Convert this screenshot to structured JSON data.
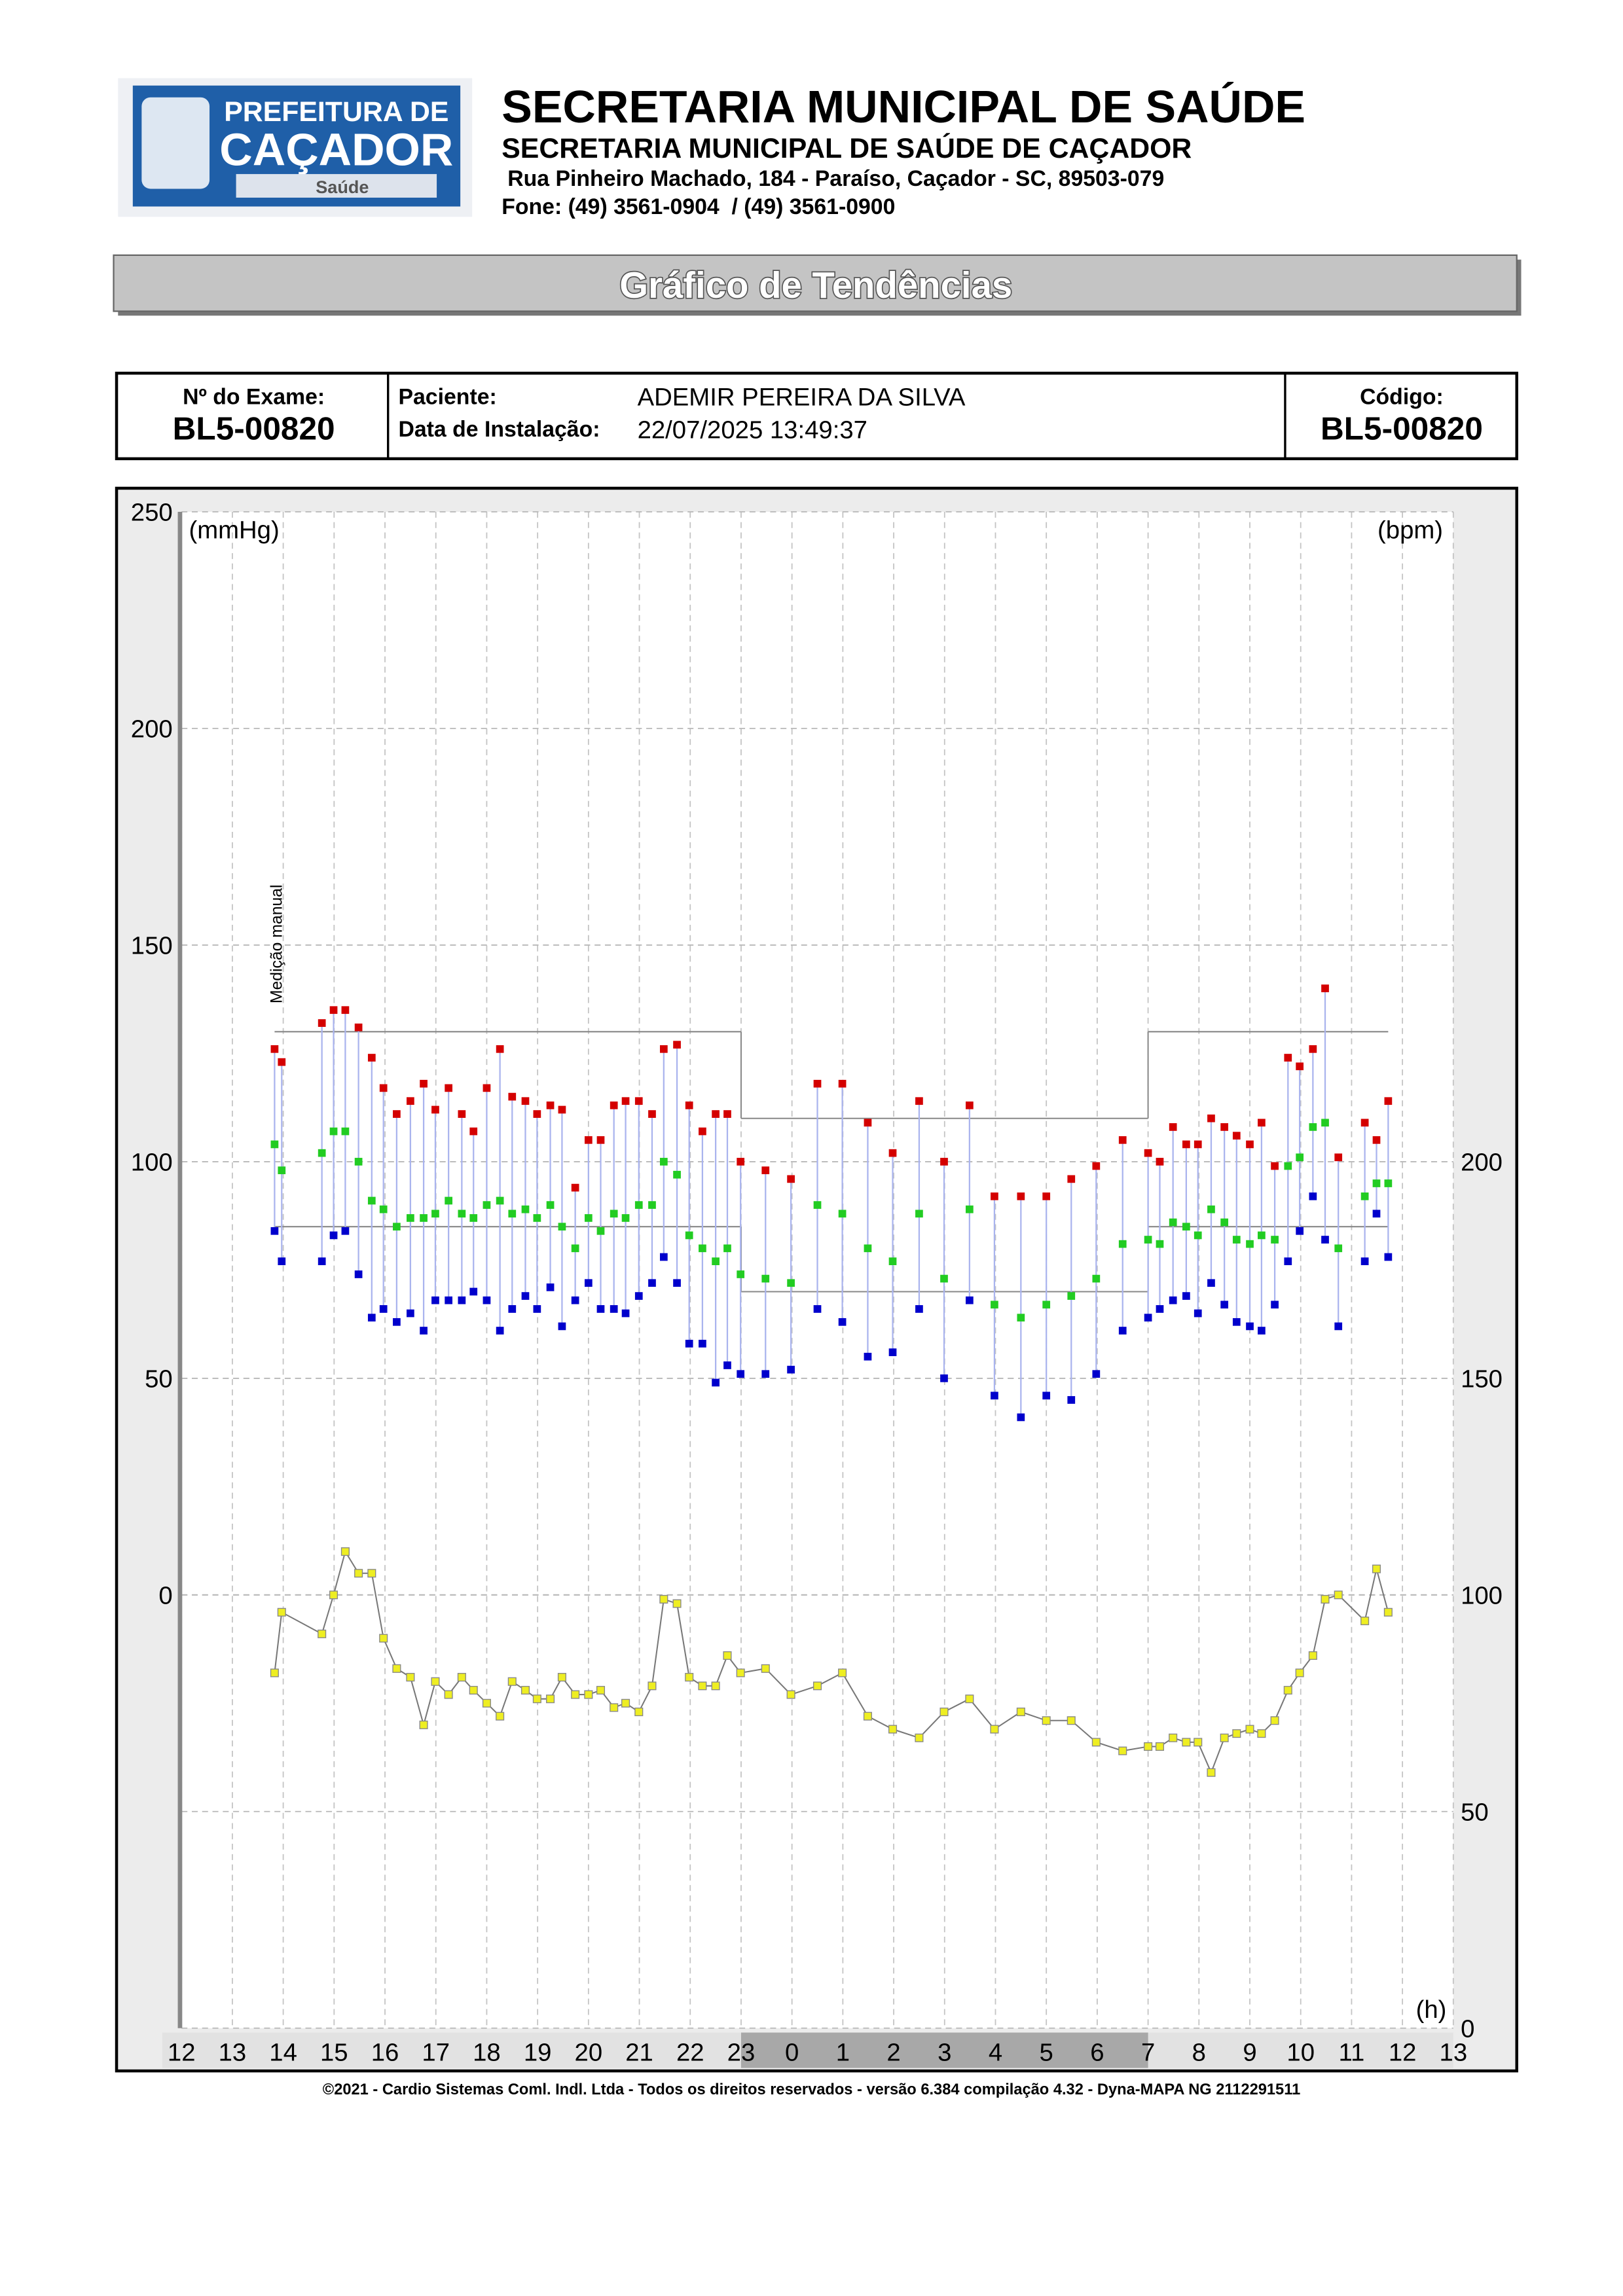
{
  "header": {
    "logo": {
      "line1": "PREFEITURA DE",
      "line2": "CAÇADOR",
      "line3": "Saúde"
    },
    "title": "SECRETARIA MUNICIPAL DE SAÚDE",
    "subtitle": "SECRETARIA MUNICIPAL DE SAÚDE DE CAÇADOR",
    "address": "Rua Pinheiro Machado, 184 - Paraíso, Caçador - SC, 89503-079",
    "phone": "Fone: (49) 3561-0904  / (49) 3561-0900"
  },
  "banner": "Gráfico de Tendências",
  "info": {
    "exam_label": "Nº do Exame:",
    "exam": "BL5-00820",
    "patient_label": "Paciente:",
    "patient": "ADEMIR PEREIRA DA SILVA",
    "date_label": "Data de Instalação:",
    "date": "22/07/2025 13:49:37",
    "code_label": "Código:",
    "code": "BL5-00820"
  },
  "chart_data": {
    "type": "scatter",
    "y_label": "(mmHg)",
    "y2_label": "(bpm)",
    "x_label": "(h)",
    "annotation": "Medição manual",
    "xlim": [
      12,
      37
    ],
    "xticks": [
      12,
      13,
      14,
      15,
      16,
      17,
      18,
      19,
      20,
      21,
      22,
      23,
      {
        "value": 24,
        "label": "0"
      },
      {
        "value": 25,
        "label": "1"
      },
      {
        "value": 26,
        "label": "2"
      },
      {
        "value": 27,
        "label": "3"
      },
      {
        "value": 28,
        "label": "4"
      },
      {
        "value": 29,
        "label": "5"
      },
      {
        "value": 30,
        "label": "6"
      },
      {
        "value": 31,
        "label": "7"
      },
      {
        "value": 32,
        "label": "8"
      },
      {
        "value": 33,
        "label": "9"
      },
      {
        "value": 34,
        "label": "10"
      },
      {
        "value": 35,
        "label": "11"
      },
      {
        "value": 36,
        "label": "12"
      },
      {
        "value": 37,
        "label": "13"
      }
    ],
    "ylim": [
      -100,
      250
    ],
    "yticks": [
      0,
      50,
      100,
      150,
      200,
      250
    ],
    "y2lim": [
      0,
      350
    ],
    "y2ticks": [
      0,
      50,
      100,
      150,
      200
    ],
    "grid": true,
    "night": [
      23,
      31
    ],
    "limits": [
      {
        "x0": 13.83,
        "x1": 23,
        "systolic": 130,
        "diastolic": 85
      },
      {
        "x0": 23,
        "x1": 31,
        "systolic": 110,
        "diastolic": 70
      },
      {
        "x0": 31,
        "x1": 35.72,
        "systolic": 130,
        "diastolic": 85
      }
    ],
    "x": [
      13.83,
      13.97,
      14.76,
      14.99,
      15.22,
      15.48,
      15.74,
      15.97,
      16.23,
      16.5,
      16.76,
      16.99,
      17.25,
      17.51,
      17.74,
      18,
      18.26,
      18.5,
      18.76,
      18.99,
      19.25,
      19.48,
      19.74,
      20,
      20.24,
      20.5,
      20.73,
      20.99,
      21.25,
      21.48,
      21.74,
      21.98,
      22.24,
      22.5,
      22.73,
      22.99,
      23.48,
      23.98,
      24.5,
      24.99,
      25.49,
      25.98,
      26.5,
      26.99,
      27.49,
      27.98,
      28.5,
      29,
      29.49,
      29.98,
      30.5,
      31,
      31.23,
      31.49,
      31.75,
      31.98,
      32.24,
      32.5,
      32.74,
      33,
      33.23,
      33.49,
      33.75,
      33.98,
      34.24,
      34.48,
      34.74,
      35.26,
      35.49,
      35.72
    ],
    "series": [
      {
        "color": "#d40000",
        "values": [
          126,
          123,
          132,
          135,
          135,
          131,
          124,
          117,
          111,
          114,
          118,
          112,
          117,
          111,
          107,
          117,
          126,
          115,
          114,
          111,
          113,
          112,
          94,
          105,
          105,
          113,
          114,
          114,
          111,
          126,
          127,
          113,
          107,
          111,
          111,
          100,
          98,
          96,
          118,
          118,
          109,
          102,
          114,
          100,
          113,
          92,
          92,
          92,
          96,
          99,
          105,
          102,
          100,
          108,
          104,
          104,
          110,
          108,
          106,
          104,
          109,
          99,
          124,
          122,
          126,
          140,
          101,
          109,
          105,
          114
        ]
      },
      {
        "color": "#22cc22",
        "values": [
          104,
          98,
          102,
          107,
          107,
          100,
          91,
          89,
          85,
          87,
          87,
          88,
          91,
          88,
          87,
          90,
          91,
          88,
          89,
          87,
          90,
          85,
          80,
          87,
          84,
          88,
          87,
          90,
          90,
          100,
          97,
          83,
          80,
          77,
          80,
          74,
          73,
          72,
          90,
          88,
          80,
          77,
          88,
          73,
          89,
          67,
          64,
          67,
          69,
          73,
          81,
          82,
          81,
          86,
          85,
          83,
          89,
          86,
          82,
          81,
          83,
          82,
          99,
          101,
          108,
          109,
          80,
          92,
          95,
          95
        ]
      },
      {
        "color": "#0000cc",
        "values": [
          84,
          77,
          77,
          83,
          84,
          74,
          64,
          66,
          63,
          65,
          61,
          68,
          68,
          68,
          70,
          68,
          61,
          66,
          69,
          66,
          71,
          62,
          68,
          72,
          66,
          66,
          65,
          69,
          72,
          78,
          72,
          58,
          58,
          49,
          53,
          51,
          51,
          52,
          66,
          63,
          55,
          56,
          66,
          50,
          68,
          46,
          41,
          46,
          45,
          51,
          61,
          64,
          66,
          68,
          69,
          65,
          72,
          67,
          63,
          62,
          61,
          67,
          77,
          84,
          92,
          82,
          62,
          77,
          88,
          78
        ]
      },
      {
        "color": "#eeee22",
        "axis": "y2",
        "values": [
          82,
          96,
          91,
          100,
          110,
          105,
          105,
          90,
          83,
          81,
          70,
          80,
          77,
          81,
          78,
          75,
          72,
          80,
          78,
          76,
          76,
          81,
          77,
          77,
          78,
          74,
          75,
          73,
          79,
          99,
          98,
          81,
          79,
          79,
          86,
          82,
          83,
          77,
          79,
          82,
          72,
          69,
          67,
          73,
          76,
          69,
          73,
          71,
          71,
          66,
          64,
          65,
          65,
          67,
          66,
          66,
          59,
          67,
          68,
          69,
          68,
          71,
          78,
          82,
          86,
          99,
          100,
          94,
          106,
          96
        ]
      }
    ]
  },
  "footer": "©2021 - Cardio Sistemas Coml. Indl. Ltda - Todos os direitos reservados - versão 6.384 compilação 4.32 - Dyna-MAPA NG 2112291511"
}
